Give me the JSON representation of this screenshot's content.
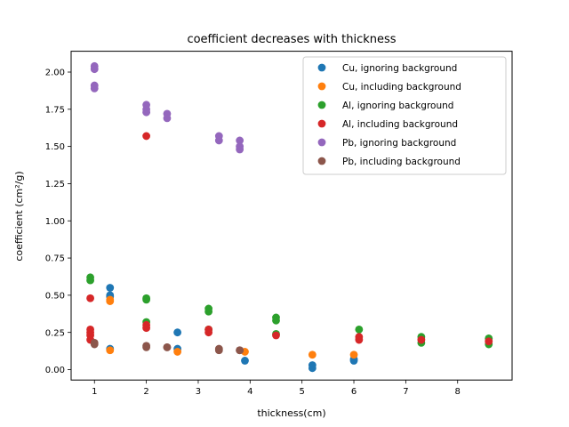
{
  "chart_data": {
    "type": "scatter",
    "title": "coefficient decreases with thickness",
    "xlabel": "thickness(cm)",
    "ylabel": "coefficient (cm²/g)",
    "xlim": [
      0.55,
      9.05
    ],
    "ylim": [
      -0.07,
      2.14
    ],
    "xticks": [
      1,
      2,
      3,
      4,
      5,
      6,
      7,
      8
    ],
    "yticks": [
      0.0,
      0.25,
      0.5,
      0.75,
      1.0,
      1.25,
      1.5,
      1.75,
      2.0
    ],
    "ytick_labels": [
      "0.00",
      "0.25",
      "0.50",
      "0.75",
      "1.00",
      "1.25",
      "1.50",
      "1.75",
      "2.00"
    ],
    "legend_position": "top-right",
    "grid": false,
    "series": [
      {
        "name": "Cu, ignoring background",
        "color": "#1f77b4",
        "points": [
          [
            1.3,
            0.55
          ],
          [
            1.3,
            0.5
          ],
          [
            1.3,
            0.49
          ],
          [
            1.3,
            0.14
          ],
          [
            2.6,
            0.25
          ],
          [
            2.6,
            0.14
          ],
          [
            3.9,
            0.06
          ],
          [
            5.2,
            0.03
          ],
          [
            5.2,
            0.01
          ],
          [
            6.0,
            0.06
          ],
          [
            6.0,
            0.07
          ]
        ]
      },
      {
        "name": "Cu, including background",
        "color": "#ff7f0e",
        "points": [
          [
            1.3,
            0.47
          ],
          [
            1.3,
            0.46
          ],
          [
            1.3,
            0.13
          ],
          [
            2.6,
            0.12
          ],
          [
            3.9,
            0.12
          ],
          [
            5.2,
            0.1
          ],
          [
            6.0,
            0.1
          ]
        ]
      },
      {
        "name": "Al, ignoring background",
        "color": "#2ca02c",
        "points": [
          [
            0.92,
            0.62
          ],
          [
            0.92,
            0.6
          ],
          [
            2.0,
            0.48
          ],
          [
            2.0,
            0.47
          ],
          [
            2.0,
            0.32
          ],
          [
            3.2,
            0.41
          ],
          [
            3.2,
            0.39
          ],
          [
            3.2,
            0.27
          ],
          [
            4.5,
            0.35
          ],
          [
            4.5,
            0.33
          ],
          [
            4.5,
            0.24
          ],
          [
            6.1,
            0.27
          ],
          [
            7.3,
            0.22
          ],
          [
            7.3,
            0.18
          ],
          [
            8.6,
            0.21
          ],
          [
            8.6,
            0.17
          ]
        ]
      },
      {
        "name": "Al, including background",
        "color": "#d62728",
        "points": [
          [
            0.92,
            0.48
          ],
          [
            0.92,
            0.27
          ],
          [
            0.92,
            0.25
          ],
          [
            0.92,
            0.23
          ],
          [
            0.92,
            0.2
          ],
          [
            2.0,
            1.57
          ],
          [
            2.0,
            0.3
          ],
          [
            2.0,
            0.28
          ],
          [
            3.2,
            0.27
          ],
          [
            3.2,
            0.25
          ],
          [
            4.5,
            0.23
          ],
          [
            6.1,
            0.22
          ],
          [
            6.1,
            0.2
          ],
          [
            7.3,
            0.2
          ],
          [
            8.6,
            0.19
          ]
        ]
      },
      {
        "name": "Pb, ignoring background",
        "color": "#9467bd",
        "points": [
          [
            1.0,
            2.04
          ],
          [
            1.0,
            2.02
          ],
          [
            1.0,
            1.91
          ],
          [
            1.0,
            1.89
          ],
          [
            2.0,
            1.78
          ],
          [
            2.0,
            1.75
          ],
          [
            2.0,
            1.73
          ],
          [
            2.4,
            1.72
          ],
          [
            2.4,
            1.69
          ],
          [
            3.4,
            1.57
          ],
          [
            3.4,
            1.54
          ],
          [
            3.8,
            1.54
          ],
          [
            3.8,
            1.5
          ],
          [
            3.8,
            1.48
          ]
        ]
      },
      {
        "name": "Pb, including background",
        "color": "#8c564b",
        "points": [
          [
            1.0,
            0.18
          ],
          [
            1.0,
            0.17
          ],
          [
            2.0,
            0.16
          ],
          [
            2.0,
            0.15
          ],
          [
            2.4,
            0.15
          ],
          [
            2.4,
            0.15
          ],
          [
            3.4,
            0.14
          ],
          [
            3.4,
            0.13
          ],
          [
            3.8,
            0.13
          ],
          [
            3.8,
            0.13
          ]
        ]
      }
    ]
  }
}
